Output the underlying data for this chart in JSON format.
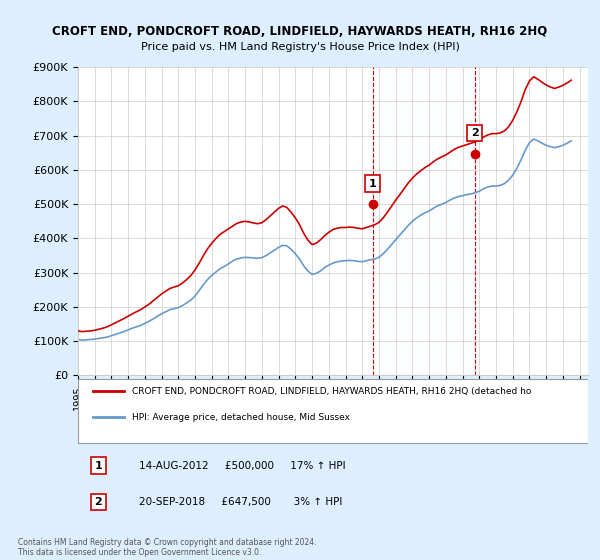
{
  "title": "CROFT END, PONDCROFT ROAD, LINDFIELD, HAYWARDS HEATH, RH16 2HQ",
  "subtitle": "Price paid vs. HM Land Registry's House Price Index (HPI)",
  "ylabel_ticks": [
    "£0",
    "£100K",
    "£200K",
    "£300K",
    "£400K",
    "£500K",
    "£600K",
    "£700K",
    "£800K",
    "£900K"
  ],
  "ylim": [
    0,
    900000
  ],
  "xlim_start": 1995.0,
  "xlim_end": 2025.5,
  "sale1_date": 2012.62,
  "sale1_price": 500000,
  "sale1_label": "1",
  "sale2_date": 2018.72,
  "sale2_price": 647500,
  "sale2_label": "2",
  "vline1_x": 2012.62,
  "vline2_x": 2018.72,
  "hpi_color": "#6699cc",
  "price_color": "#cc0000",
  "vline_color": "#cc0000",
  "background_color": "#ddeeff",
  "plot_bg": "#ffffff",
  "legend_line1": "CROFT END, PONDCROFT ROAD, LINDFIELD, HAYWARDS HEATH, RH16 2HQ (detached ho",
  "legend_line2": "HPI: Average price, detached house, Mid Sussex",
  "annotation1": "14-AUG-2012     £500,000     17% ↑ HPI",
  "annotation2": "20-SEP-2018     £647,500       3% ↑ HPI",
  "footer": "Contains HM Land Registry data © Crown copyright and database right 2024.\nThis data is licensed under the Open Government Licence v3.0.",
  "hpi_data_x": [
    1995.0,
    1995.25,
    1995.5,
    1995.75,
    1996.0,
    1996.25,
    1996.5,
    1996.75,
    1997.0,
    1997.25,
    1997.5,
    1997.75,
    1998.0,
    1998.25,
    1998.5,
    1998.75,
    1999.0,
    1999.25,
    1999.5,
    1999.75,
    2000.0,
    2000.25,
    2000.5,
    2000.75,
    2001.0,
    2001.25,
    2001.5,
    2001.75,
    2002.0,
    2002.25,
    2002.5,
    2002.75,
    2003.0,
    2003.25,
    2003.5,
    2003.75,
    2004.0,
    2004.25,
    2004.5,
    2004.75,
    2005.0,
    2005.25,
    2005.5,
    2005.75,
    2006.0,
    2006.25,
    2006.5,
    2006.75,
    2007.0,
    2007.25,
    2007.5,
    2007.75,
    2008.0,
    2008.25,
    2008.5,
    2008.75,
    2009.0,
    2009.25,
    2009.5,
    2009.75,
    2010.0,
    2010.25,
    2010.5,
    2010.75,
    2011.0,
    2011.25,
    2011.5,
    2011.75,
    2012.0,
    2012.25,
    2012.5,
    2012.75,
    2013.0,
    2013.25,
    2013.5,
    2013.75,
    2014.0,
    2014.25,
    2014.5,
    2014.75,
    2015.0,
    2015.25,
    2015.5,
    2015.75,
    2016.0,
    2016.25,
    2016.5,
    2016.75,
    2017.0,
    2017.25,
    2017.5,
    2017.75,
    2018.0,
    2018.25,
    2018.5,
    2018.75,
    2019.0,
    2019.25,
    2019.5,
    2019.75,
    2020.0,
    2020.25,
    2020.5,
    2020.75,
    2021.0,
    2021.25,
    2021.5,
    2021.75,
    2022.0,
    2022.25,
    2022.5,
    2022.75,
    2023.0,
    2023.25,
    2023.5,
    2023.75,
    2024.0,
    2024.25,
    2024.5
  ],
  "hpi_data_y": [
    105000,
    103000,
    104000,
    105000,
    106000,
    108000,
    110000,
    112000,
    116000,
    120000,
    124000,
    128000,
    133000,
    138000,
    142000,
    146000,
    152000,
    158000,
    165000,
    173000,
    180000,
    186000,
    192000,
    195000,
    198000,
    204000,
    212000,
    220000,
    232000,
    248000,
    265000,
    280000,
    292000,
    302000,
    312000,
    318000,
    326000,
    334000,
    340000,
    343000,
    345000,
    344000,
    343000,
    342000,
    344000,
    350000,
    358000,
    366000,
    374000,
    380000,
    378000,
    368000,
    355000,
    340000,
    320000,
    305000,
    295000,
    298000,
    305000,
    315000,
    322000,
    328000,
    332000,
    334000,
    335000,
    336000,
    335000,
    333000,
    332000,
    335000,
    338000,
    340000,
    345000,
    355000,
    368000,
    382000,
    396000,
    410000,
    424000,
    438000,
    450000,
    460000,
    468000,
    475000,
    480000,
    488000,
    495000,
    500000,
    505000,
    512000,
    518000,
    522000,
    525000,
    528000,
    530000,
    533000,
    538000,
    545000,
    550000,
    553000,
    553000,
    555000,
    560000,
    570000,
    585000,
    605000,
    630000,
    658000,
    680000,
    690000,
    685000,
    678000,
    672000,
    668000,
    665000,
    668000,
    672000,
    678000,
    685000
  ],
  "price_data_x": [
    1995.0,
    1995.25,
    1995.5,
    1995.75,
    1996.0,
    1996.25,
    1996.5,
    1996.75,
    1997.0,
    1997.25,
    1997.5,
    1997.75,
    1998.0,
    1998.25,
    1998.5,
    1998.75,
    1999.0,
    1999.25,
    1999.5,
    1999.75,
    2000.0,
    2000.25,
    2000.5,
    2000.75,
    2001.0,
    2001.25,
    2001.5,
    2001.75,
    2002.0,
    2002.25,
    2002.5,
    2002.75,
    2003.0,
    2003.25,
    2003.5,
    2003.75,
    2004.0,
    2004.25,
    2004.5,
    2004.75,
    2005.0,
    2005.25,
    2005.5,
    2005.75,
    2006.0,
    2006.25,
    2006.5,
    2006.75,
    2007.0,
    2007.25,
    2007.5,
    2007.75,
    2008.0,
    2008.25,
    2008.5,
    2008.75,
    2009.0,
    2009.25,
    2009.5,
    2009.75,
    2010.0,
    2010.25,
    2010.5,
    2010.75,
    2011.0,
    2011.25,
    2011.5,
    2011.75,
    2012.0,
    2012.25,
    2012.5,
    2012.75,
    2013.0,
    2013.25,
    2013.5,
    2013.75,
    2014.0,
    2014.25,
    2014.5,
    2014.75,
    2015.0,
    2015.25,
    2015.5,
    2015.75,
    2016.0,
    2016.25,
    2016.5,
    2016.75,
    2017.0,
    2017.25,
    2017.5,
    2017.75,
    2018.0,
    2018.25,
    2018.5,
    2018.75,
    2019.0,
    2019.25,
    2019.5,
    2019.75,
    2020.0,
    2020.25,
    2020.5,
    2020.75,
    2021.0,
    2021.25,
    2021.5,
    2021.75,
    2022.0,
    2022.25,
    2022.5,
    2022.75,
    2023.0,
    2023.25,
    2023.5,
    2023.75,
    2024.0,
    2024.25,
    2024.5
  ],
  "price_data_y": [
    130000,
    128000,
    129000,
    130000,
    132000,
    135000,
    138000,
    142000,
    148000,
    154000,
    160000,
    166000,
    173000,
    180000,
    186000,
    192000,
    200000,
    208000,
    218000,
    228000,
    238000,
    246000,
    254000,
    258000,
    262000,
    270000,
    280000,
    292000,
    308000,
    328000,
    350000,
    370000,
    386000,
    400000,
    412000,
    420000,
    428000,
    436000,
    444000,
    448000,
    450000,
    448000,
    445000,
    443000,
    446000,
    455000,
    466000,
    477000,
    488000,
    495000,
    490000,
    476000,
    460000,
    440000,
    415000,
    395000,
    382000,
    386000,
    396000,
    408000,
    418000,
    426000,
    430000,
    432000,
    432000,
    433000,
    432000,
    430000,
    428000,
    432000,
    436000,
    440000,
    447000,
    460000,
    476000,
    494000,
    512000,
    528000,
    545000,
    562000,
    576000,
    588000,
    598000,
    607000,
    614000,
    624000,
    632000,
    638000,
    644000,
    652000,
    660000,
    666000,
    670000,
    674000,
    678000,
    682000,
    688000,
    696000,
    702000,
    706000,
    706000,
    708000,
    714000,
    726000,
    745000,
    770000,
    800000,
    835000,
    860000,
    872000,
    865000,
    856000,
    848000,
    842000,
    838000,
    842000,
    847000,
    854000,
    862000
  ]
}
